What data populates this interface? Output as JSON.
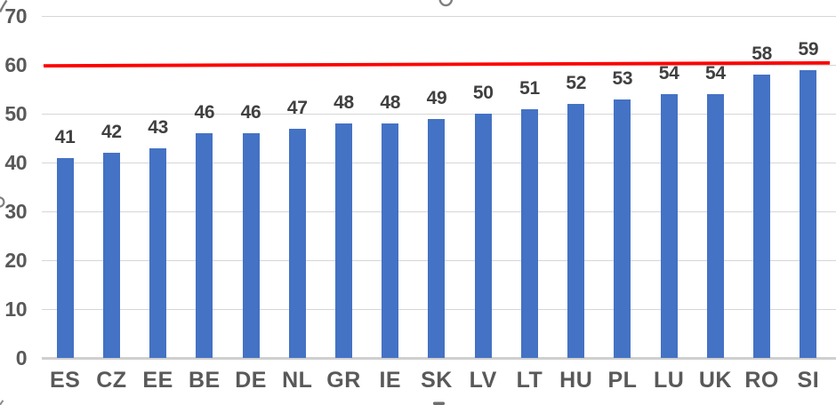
{
  "chart_data": {
    "type": "bar",
    "categories": [
      "ES",
      "CZ",
      "EE",
      "BE",
      "DE",
      "NL",
      "GR",
      "IE",
      "SK",
      "LV",
      "LT",
      "HU",
      "PL",
      "LU",
      "UK",
      "RO",
      "SI"
    ],
    "values": [
      41,
      42,
      43,
      46,
      46,
      47,
      48,
      48,
      49,
      50,
      51,
      52,
      53,
      54,
      54,
      58,
      59
    ],
    "y_ticks": [
      0,
      10,
      20,
      30,
      40,
      50,
      60,
      70
    ],
    "ylim": [
      0,
      70
    ],
    "grid": true,
    "legend_position": "none",
    "reference_line": {
      "approx_value": 60,
      "start_value": 59.8,
      "end_value": 60.4,
      "color": "#fe0000"
    },
    "colors": {
      "bar": "#4472c4",
      "gridline": "#d6d6d6",
      "axis_labels": "#595959",
      "data_labels": "#404040",
      "reference_line": "#fe0000",
      "cropped_fragments": "#7f7f7f"
    }
  }
}
